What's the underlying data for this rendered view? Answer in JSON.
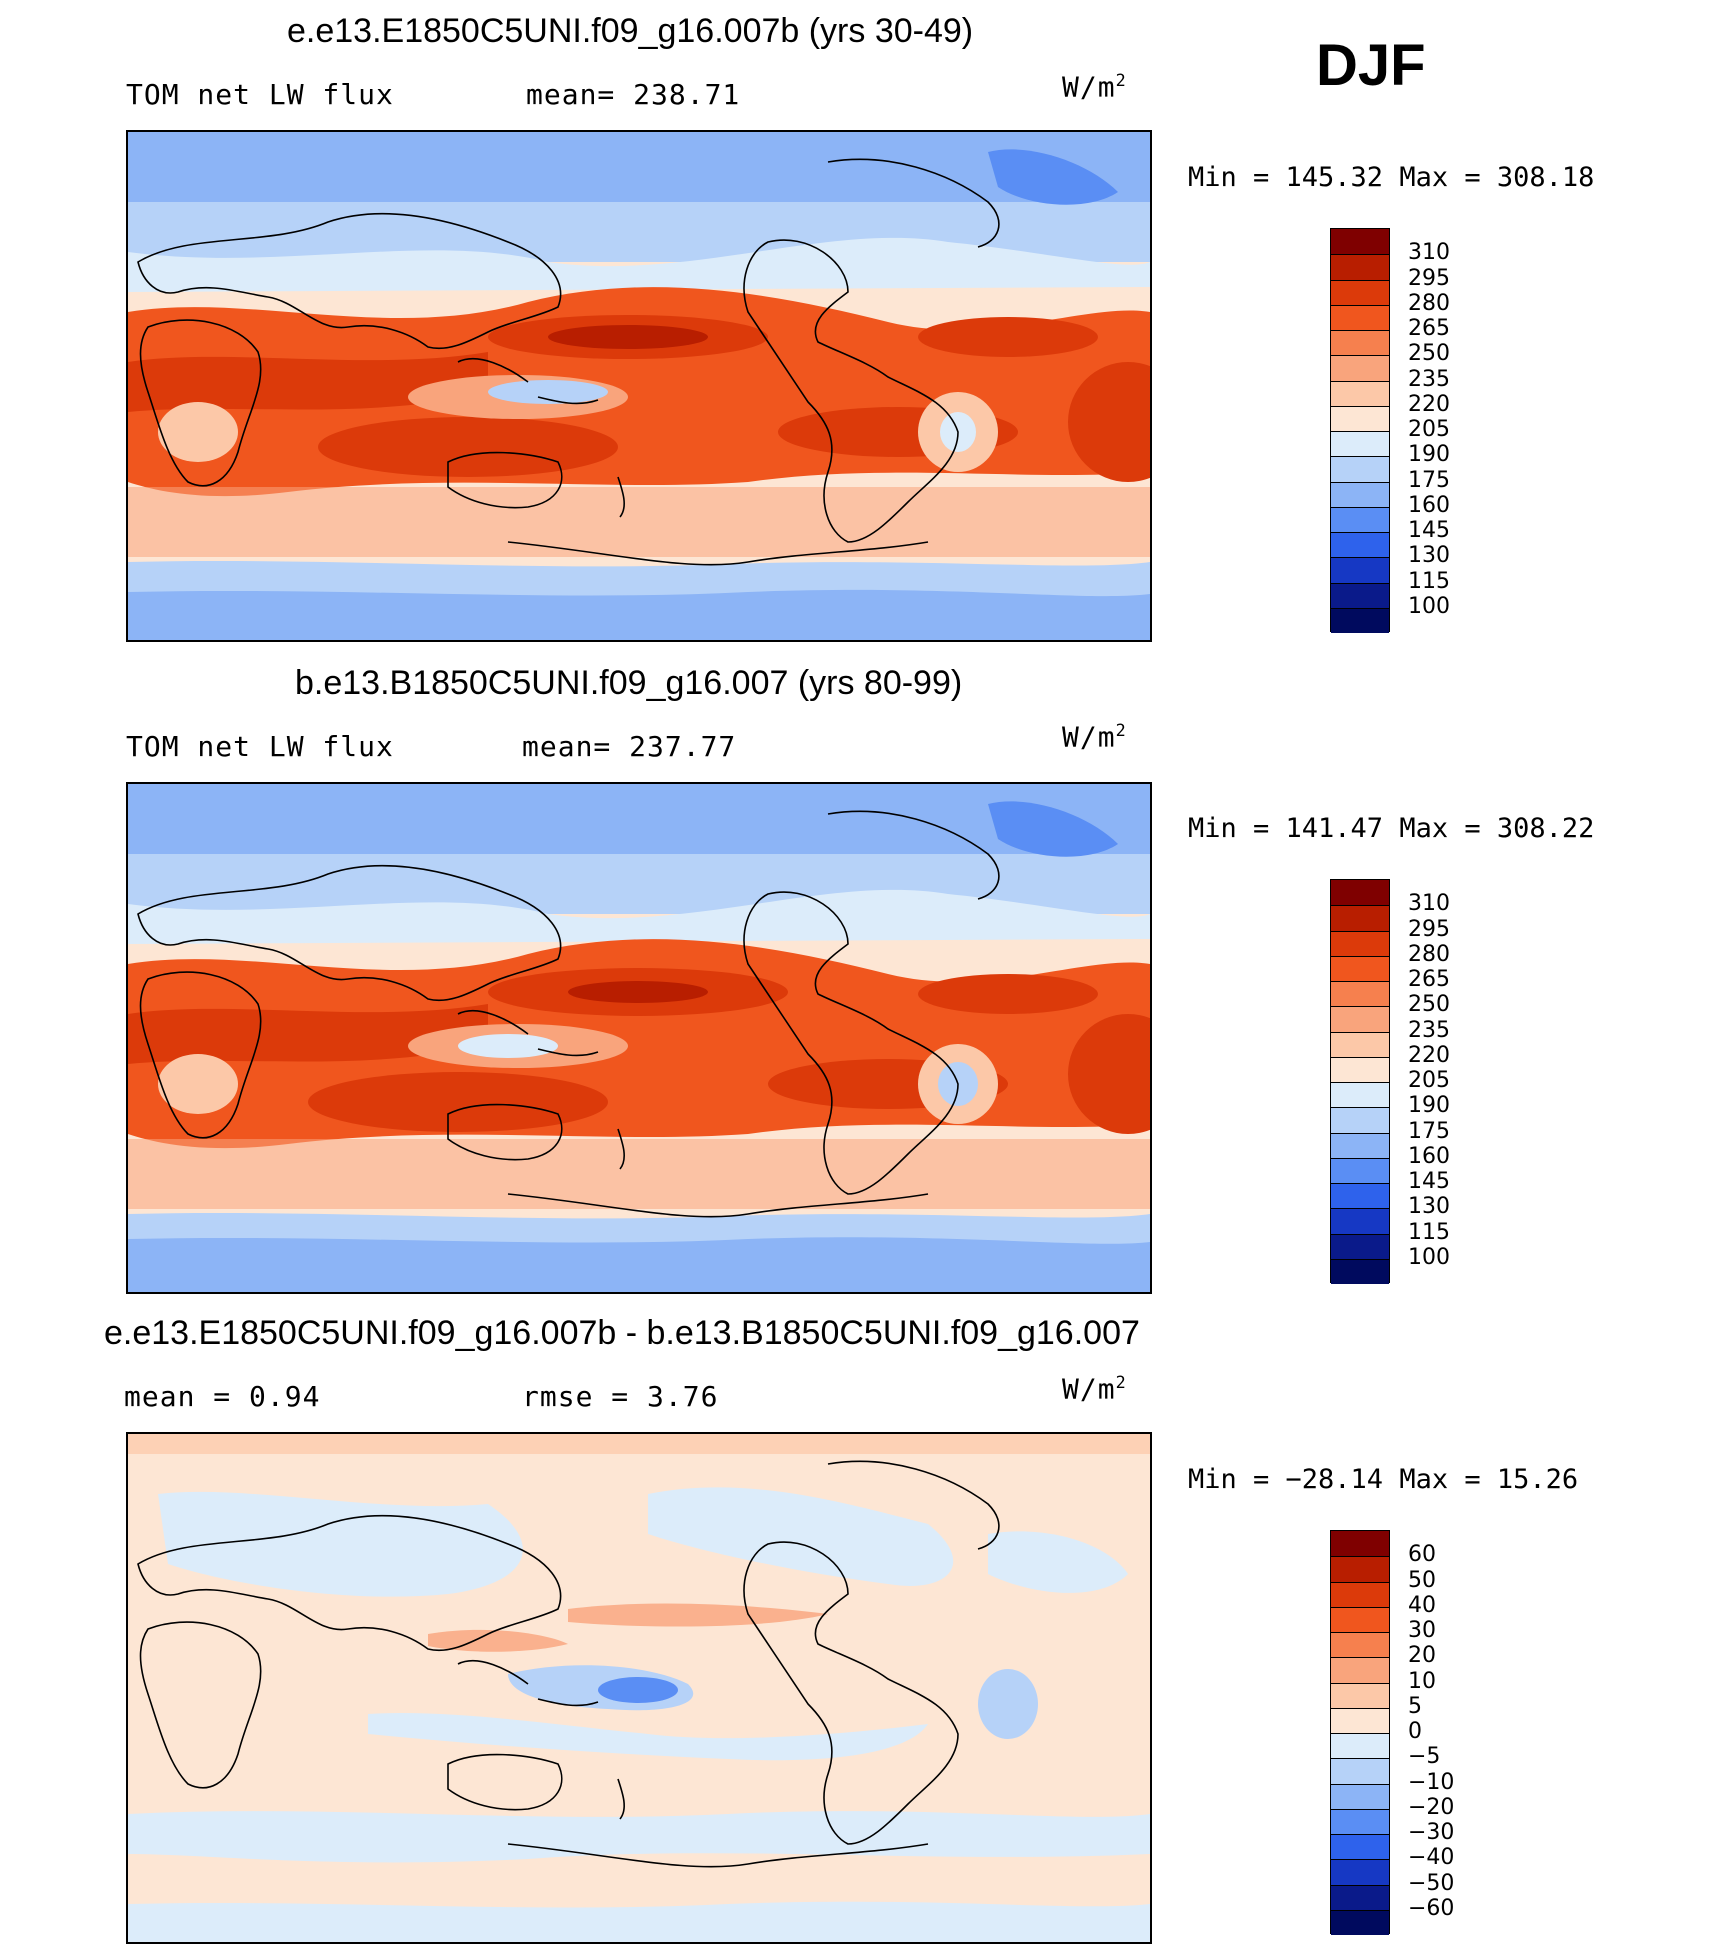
{
  "season": "DJF",
  "units": "W/m",
  "units_sup": "2",
  "panels": [
    {
      "id": "test",
      "title": "e.e13.E1850C5UNI.f09_g16.007b (yrs 30-49)",
      "left_label": "TOM net LW flux",
      "center_label": "mean=  238.71",
      "stats": "Min  =  145.32  Max  =  308.18",
      "levels": [
        "310",
        "295",
        "280",
        "265",
        "250",
        "235",
        "220",
        "205",
        "190",
        "175",
        "160",
        "145",
        "130",
        "115",
        "100"
      ]
    },
    {
      "id": "control",
      "title": "b.e13.B1850C5UNI.f09_g16.007 (yrs 80-99)",
      "left_label": "TOM net LW flux",
      "center_label": "mean=  237.77",
      "stats": "Min  =  141.47  Max  =  308.22",
      "levels": [
        "310",
        "295",
        "280",
        "265",
        "250",
        "235",
        "220",
        "205",
        "190",
        "175",
        "160",
        "145",
        "130",
        "115",
        "100"
      ]
    },
    {
      "id": "diff",
      "title": "e.e13.E1850C5UNI.f09_g16.007b - b.e13.B1850C5UNI.f09_g16.007",
      "left_label": "mean  =     0.94",
      "center_label": "rmse  =      3.76",
      "stats": "Min  =  −28.14  Max  =    15.26",
      "levels": [
        "60",
        "50",
        "40",
        "30",
        "20",
        "10",
        "5",
        "0",
        "−5",
        "−10",
        "−20",
        "−30",
        "−40",
        "−50",
        "−60"
      ]
    }
  ],
  "colors": {
    "abs_scale": [
      "#7f0000",
      "#b81e00",
      "#dc3a0a",
      "#f0561e",
      "#f6804e",
      "#f9a47c",
      "#fcc8a8",
      "#fde6d4",
      "#dcecfa",
      "#b6d2f8",
      "#8cb4f6",
      "#5a8ef4",
      "#2e62ec",
      "#1638c4",
      "#0a1a8a",
      "#000a5e"
    ],
    "diff_scale": [
      "#7f0000",
      "#b81e00",
      "#dc3a0a",
      "#f0561e",
      "#f6804e",
      "#f9a47c",
      "#fcc8a8",
      "#fde6d4",
      "#dcecfa",
      "#b6d2f8",
      "#8cb4f6",
      "#5a8ef4",
      "#2e62ec",
      "#1638c4",
      "#0a1a8a",
      "#000a5e"
    ]
  }
}
